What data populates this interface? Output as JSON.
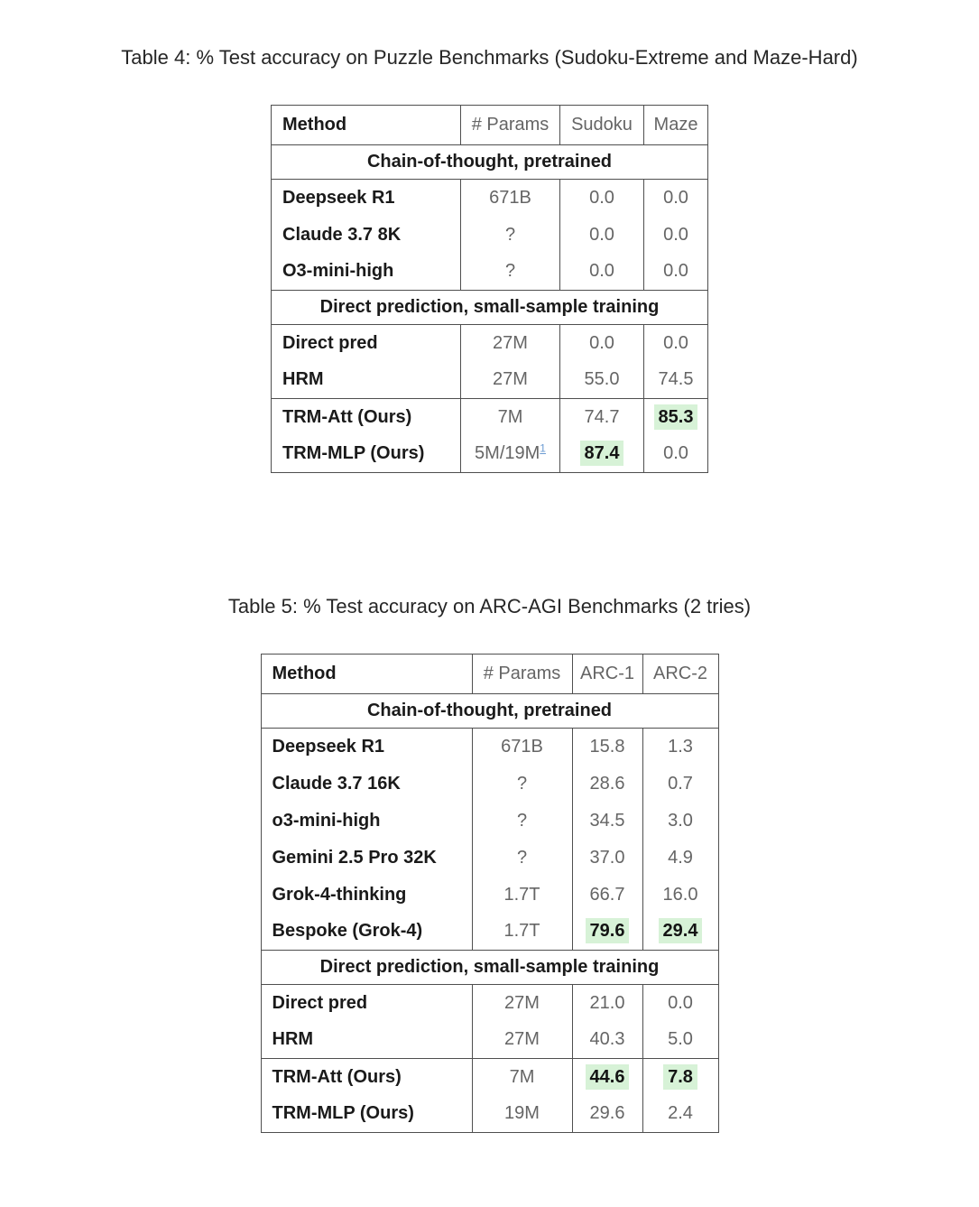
{
  "colors": {
    "highlight_green": "#d7f2d7",
    "footnote_link_blue": "#6b9bd2",
    "border_gray": "#4f4f4f",
    "value_gray": "#656565",
    "text_black": "#1a1a1a"
  },
  "table4": {
    "title": "Table 4: % Test accuracy on Puzzle Benchmarks (Sudoku-Extreme and Maze-Hard)",
    "columns": [
      "Method",
      "# Params",
      "Sudoku",
      "Maze"
    ],
    "sections": [
      {
        "header": "Chain-of-thought, pretrained",
        "groups": [
          {
            "rows": [
              {
                "method": "Deepseek R1",
                "params": "671B",
                "values": [
                  "0.0",
                  "0.0"
                ],
                "highlight": [
                  false,
                  false
                ]
              },
              {
                "method": "Claude 3.7 8K",
                "params": "?",
                "values": [
                  "0.0",
                  "0.0"
                ],
                "highlight": [
                  false,
                  false
                ]
              },
              {
                "method": "O3-mini-high",
                "params": "?",
                "values": [
                  "0.0",
                  "0.0"
                ],
                "highlight": [
                  false,
                  false
                ]
              }
            ]
          }
        ]
      },
      {
        "header": "Direct prediction, small-sample training",
        "groups": [
          {
            "rows": [
              {
                "method": "Direct pred",
                "params": "27M",
                "values": [
                  "0.0",
                  "0.0"
                ],
                "highlight": [
                  false,
                  false
                ]
              },
              {
                "method": "HRM",
                "params": "27M",
                "values": [
                  "55.0",
                  "74.5"
                ],
                "highlight": [
                  false,
                  false
                ]
              }
            ]
          },
          {
            "rows": [
              {
                "method": "TRM-Att (Ours)",
                "params": "7M",
                "values": [
                  "74.7",
                  "85.3"
                ],
                "highlight": [
                  false,
                  true
                ]
              },
              {
                "method": "TRM-MLP (Ours)",
                "params": "5M/19M",
                "params_sup": "1",
                "values": [
                  "87.4",
                  "0.0"
                ],
                "highlight": [
                  true,
                  false
                ]
              }
            ]
          }
        ]
      }
    ]
  },
  "table5": {
    "title": "Table 5: % Test accuracy on ARC-AGI Benchmarks (2 tries)",
    "columns": [
      "Method",
      "# Params",
      "ARC-1",
      "ARC-2"
    ],
    "sections": [
      {
        "header": "Chain-of-thought, pretrained",
        "groups": [
          {
            "rows": [
              {
                "method": "Deepseek R1",
                "params": "671B",
                "values": [
                  "15.8",
                  "1.3"
                ],
                "highlight": [
                  false,
                  false
                ]
              },
              {
                "method": "Claude 3.7 16K",
                "params": "?",
                "values": [
                  "28.6",
                  "0.7"
                ],
                "highlight": [
                  false,
                  false
                ]
              },
              {
                "method": "o3-mini-high",
                "params": "?",
                "values": [
                  "34.5",
                  "3.0"
                ],
                "highlight": [
                  false,
                  false
                ]
              },
              {
                "method": "Gemini 2.5 Pro 32K",
                "params": "?",
                "values": [
                  "37.0",
                  "4.9"
                ],
                "highlight": [
                  false,
                  false
                ]
              },
              {
                "method": "Grok-4-thinking",
                "params": "1.7T",
                "values": [
                  "66.7",
                  "16.0"
                ],
                "highlight": [
                  false,
                  false
                ]
              },
              {
                "method": "Bespoke (Grok-4)",
                "params": "1.7T",
                "values": [
                  "79.6",
                  "29.4"
                ],
                "highlight": [
                  true,
                  true
                ]
              }
            ]
          }
        ]
      },
      {
        "header": "Direct prediction, small-sample training",
        "groups": [
          {
            "rows": [
              {
                "method": "Direct pred",
                "params": "27M",
                "values": [
                  "21.0",
                  "0.0"
                ],
                "highlight": [
                  false,
                  false
                ]
              },
              {
                "method": "HRM",
                "params": "27M",
                "values": [
                  "40.3",
                  "5.0"
                ],
                "highlight": [
                  false,
                  false
                ]
              }
            ]
          },
          {
            "rows": [
              {
                "method": "TRM-Att (Ours)",
                "params": "7M",
                "values": [
                  "44.6",
                  "7.8"
                ],
                "highlight": [
                  true,
                  true
                ]
              },
              {
                "method": "TRM-MLP (Ours)",
                "params": "19M",
                "values": [
                  "29.6",
                  "2.4"
                ],
                "highlight": [
                  false,
                  false
                ]
              }
            ]
          }
        ]
      }
    ]
  }
}
